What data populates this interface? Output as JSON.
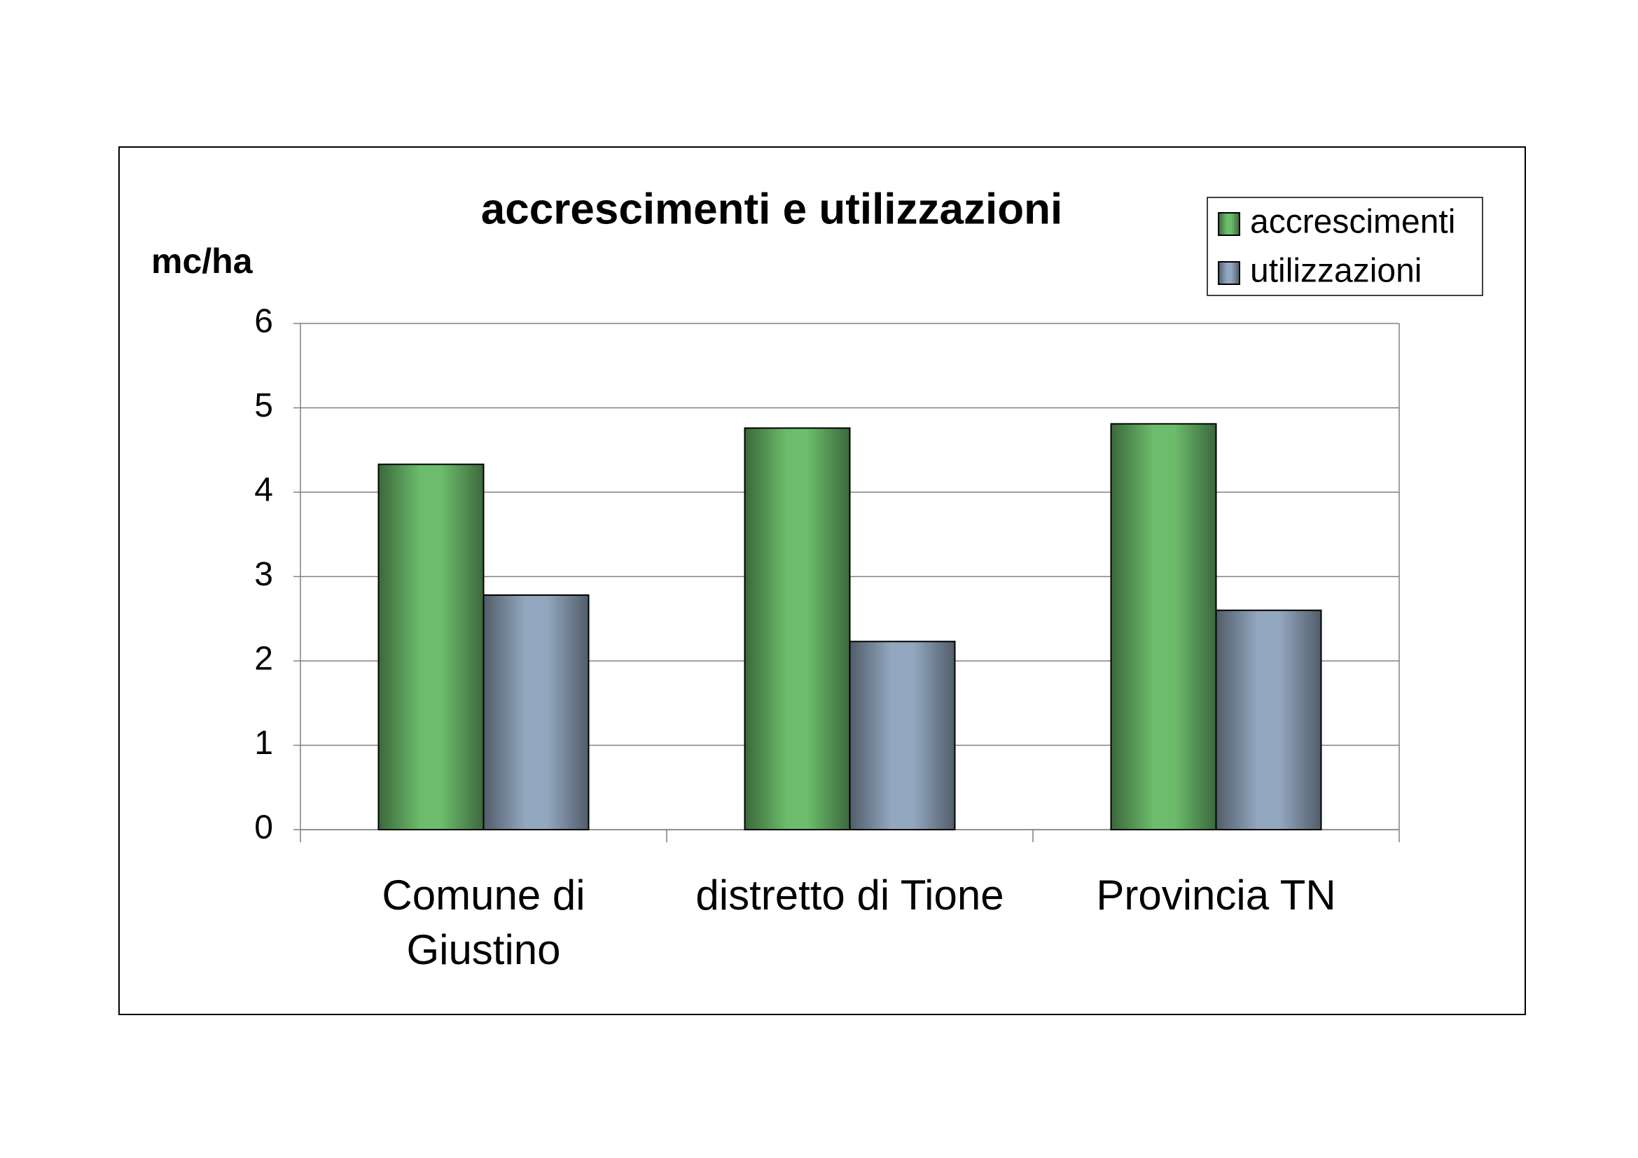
{
  "chart_data": {
    "type": "bar",
    "title": "accrescimenti e utilizzazioni",
    "y_label": "mc/ha",
    "categories": [
      "Comune di\nGiustino",
      "distretto di Tione",
      "Provincia TN"
    ],
    "series": [
      {
        "name": "accrescimenti",
        "color": "#6cbc6c",
        "values": [
          4.33,
          4.76,
          4.81
        ]
      },
      {
        "name": "utilizzazioni",
        "color": "#93a8c0",
        "values": [
          2.78,
          2.23,
          2.6
        ]
      }
    ],
    "ylim": [
      0,
      6
    ],
    "yticks": [
      0,
      1,
      2,
      3,
      4,
      5,
      6
    ],
    "grid": true,
    "legend": "top-right"
  }
}
